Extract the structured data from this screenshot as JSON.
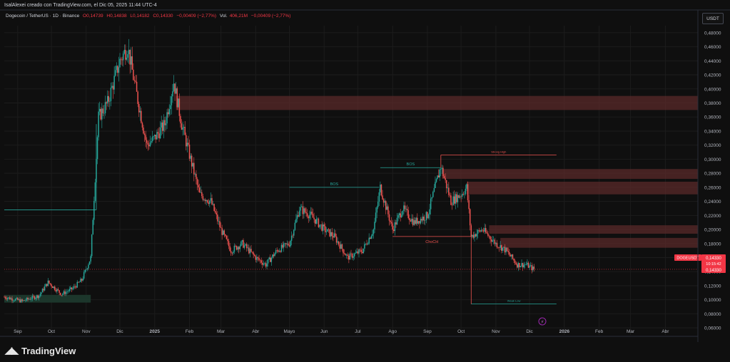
{
  "header": {
    "attribution": "IsalAlexei creado con TradingView.com, el Dic 05, 2025 11:44 UTC-4"
  },
  "legend": {
    "symbol": "Dogecoin / TetherUS · 1D · Binance",
    "open": "O0,14739",
    "high": "H0,14838",
    "low": "L0,14182",
    "close": "C0,14330",
    "change": "−0,00409 (−2,77%)",
    "volume_label": "Vol.",
    "volume": "406,21M",
    "volume_change": "−0,00409 (−2,77%)"
  },
  "price_scale": {
    "currency": "USDT",
    "ticks": [
      "0,48000",
      "0,46000",
      "0,44000",
      "0,42000",
      "0,40000",
      "0,38000",
      "0,36000",
      "0,34000",
      "0,32000",
      "0,30000",
      "0,28000",
      "0,26000",
      "0,24000",
      "0,22000",
      "0,20000",
      "0,18000",
      "0,16000",
      "0,14000",
      "0,12000",
      "0,10000",
      "0,08000",
      "0,06000"
    ],
    "tick_values": [
      0.48,
      0.46,
      0.44,
      0.42,
      0.4,
      0.38,
      0.36,
      0.34,
      0.32,
      0.3,
      0.28,
      0.26,
      0.24,
      0.22,
      0.2,
      0.18,
      0.16,
      0.14,
      0.12,
      0.1,
      0.08,
      0.06
    ],
    "symbol_tag": "DOGEUSDT",
    "last_price": "0,14330",
    "countdown": "10:15:42",
    "last_price_value": 0.1433
  },
  "time_scale": {
    "labels": [
      "Sep",
      "Oct",
      "Nov",
      "Dic",
      "2025",
      "Feb",
      "Mar",
      "Abr",
      "Mayo",
      "Jun",
      "Jul",
      "Ago",
      "Sep",
      "Oct",
      "Nov",
      "Dic",
      "2026",
      "Feb",
      "Mar",
      "Abr"
    ]
  },
  "annotations": {
    "bos_1": "BOS",
    "bos_2": "BOS",
    "choch": "ChoCH",
    "strong_high": "Strong High",
    "weak_low": "Weak Low"
  },
  "branding": {
    "name": "TradingView",
    "logo": "tradingview-logo-icon"
  },
  "colors": {
    "bull": "#26a69a",
    "bear": "#ef5350",
    "zone": "#5a2a2a",
    "zone_green": "#1e3b2f",
    "grid": "#1c1c1c",
    "last_price": "#f23645"
  },
  "chart_data": {
    "type": "candlestick",
    "title": "Dogecoin / TetherUS · 1D · Binance",
    "x_range": [
      "2024-08-20",
      "2026-04-30"
    ],
    "ylim": [
      0.05,
      0.49
    ],
    "grid": true,
    "last_price": 0.1433,
    "price_path": [
      [
        "2024-08-20",
        0.104
      ],
      [
        "2024-09-05",
        0.098
      ],
      [
        "2024-09-20",
        0.106
      ],
      [
        "2024-09-28",
        0.125
      ],
      [
        "2024-10-10",
        0.108
      ],
      [
        "2024-10-20",
        0.116
      ],
      [
        "2024-10-28",
        0.128
      ],
      [
        "2024-11-05",
        0.16
      ],
      [
        "2024-11-12",
        0.36
      ],
      [
        "2024-11-20",
        0.38
      ],
      [
        "2024-12-01",
        0.44
      ],
      [
        "2024-12-08",
        0.46
      ],
      [
        "2024-12-15",
        0.4
      ],
      [
        "2024-12-25",
        0.32
      ],
      [
        "2025-01-01",
        0.33
      ],
      [
        "2025-01-10",
        0.35
      ],
      [
        "2025-01-18",
        0.41
      ],
      [
        "2025-01-25",
        0.35
      ],
      [
        "2025-02-02",
        0.3
      ],
      [
        "2025-02-10",
        0.25
      ],
      [
        "2025-02-20",
        0.24
      ],
      [
        "2025-03-01",
        0.2
      ],
      [
        "2025-03-10",
        0.17
      ],
      [
        "2025-03-20",
        0.18
      ],
      [
        "2025-04-01",
        0.16
      ],
      [
        "2025-04-10",
        0.15
      ],
      [
        "2025-04-20",
        0.17
      ],
      [
        "2025-05-01",
        0.18
      ],
      [
        "2025-05-10",
        0.23
      ],
      [
        "2025-05-20",
        0.22
      ],
      [
        "2025-06-01",
        0.2
      ],
      [
        "2025-06-10",
        0.19
      ],
      [
        "2025-06-22",
        0.16
      ],
      [
        "2025-07-05",
        0.17
      ],
      [
        "2025-07-15",
        0.2
      ],
      [
        "2025-07-21",
        0.26
      ],
      [
        "2025-08-01",
        0.2
      ],
      [
        "2025-08-10",
        0.23
      ],
      [
        "2025-08-20",
        0.21
      ],
      [
        "2025-09-01",
        0.22
      ],
      [
        "2025-09-13",
        0.29
      ],
      [
        "2025-09-22",
        0.24
      ],
      [
        "2025-10-01",
        0.25
      ],
      [
        "2025-10-06",
        0.26
      ],
      [
        "2025-10-10",
        0.19
      ],
      [
        "2025-10-20",
        0.2
      ],
      [
        "2025-11-01",
        0.18
      ],
      [
        "2025-11-10",
        0.17
      ],
      [
        "2025-11-20",
        0.15
      ],
      [
        "2025-11-28",
        0.15
      ],
      [
        "2025-12-05",
        0.1433
      ]
    ],
    "supply_zones": [
      {
        "from": "2025-01-20",
        "to": "2026-04-30",
        "low": 0.37,
        "high": 0.39
      },
      {
        "from": "2025-09-14",
        "to": "2026-04-30",
        "low": 0.272,
        "high": 0.286
      },
      {
        "from": "2025-10-06",
        "to": "2026-04-30",
        "low": 0.25,
        "high": 0.268
      },
      {
        "from": "2025-10-26",
        "to": "2026-04-30",
        "low": 0.194,
        "high": 0.206
      },
      {
        "from": "2025-11-05",
        "to": "2026-04-30",
        "low": 0.174,
        "high": 0.188
      }
    ],
    "demand_zones": [
      {
        "from": "2024-08-20",
        "to": "2024-11-05",
        "low": 0.096,
        "high": 0.107
      }
    ],
    "structure_lines": [
      {
        "label": "BOS",
        "from": "2025-05-01",
        "to": "2025-07-20",
        "price": 0.26,
        "color": "#26a69a"
      },
      {
        "label": "BOS",
        "from": "2025-07-21",
        "to": "2025-09-13",
        "price": 0.288,
        "color": "#26a69a"
      },
      {
        "label": "ChoCH",
        "from": "2025-08-01",
        "to": "2025-10-10",
        "price": 0.19,
        "color": "#ef5350"
      },
      {
        "label": "Strong High",
        "from": "2025-09-13",
        "to": "2025-12-25",
        "price": 0.306,
        "color": "#ef5350"
      },
      {
        "label": "Weak Low",
        "from": "2025-10-10",
        "to": "2025-12-25",
        "price": 0.094,
        "color": "#26a69a"
      },
      {
        "label": "",
        "from": "2024-08-20",
        "to": "2024-11-10",
        "price": 0.228,
        "color": "#26a69a"
      }
    ]
  }
}
